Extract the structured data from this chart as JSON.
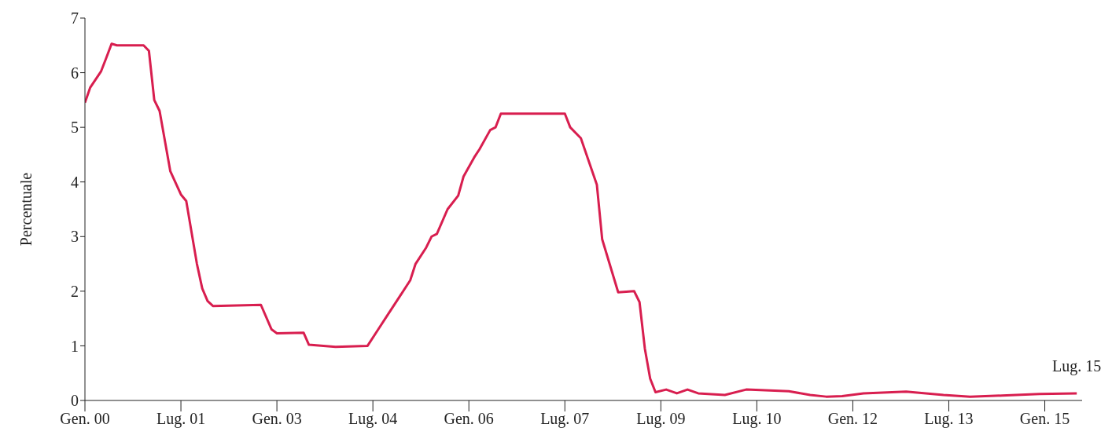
{
  "chart_data": {
    "type": "line",
    "ylabel": "Percentuale",
    "x": [
      "2000-01",
      "2000-02",
      "2000-04",
      "2000-05",
      "2000-06",
      "2000-07",
      "2000-12",
      "2001-01",
      "2001-02",
      "2001-03",
      "2001-05",
      "2001-07",
      "2001-08",
      "2001-10",
      "2001-11",
      "2001-12",
      "2002-01",
      "2002-10",
      "2002-12",
      "2003-01",
      "2003-06",
      "2003-07",
      "2003-12",
      "2004-06",
      "2004-08",
      "2004-10",
      "2004-12",
      "2005-02",
      "2005-03",
      "2005-05",
      "2005-06",
      "2005-07",
      "2005-09",
      "2005-11",
      "2005-12",
      "2006-02",
      "2006-03",
      "2006-05",
      "2006-06",
      "2006-07",
      "2007-07",
      "2007-08",
      "2007-10",
      "2008-01",
      "2008-02",
      "2008-05",
      "2008-08",
      "2008-09",
      "2008-10",
      "2008-11",
      "2008-12",
      "2009-02",
      "2009-04",
      "2009-06",
      "2009-08",
      "2010-01",
      "2010-05",
      "2011-01",
      "2011-05",
      "2011-08",
      "2011-11",
      "2012-03",
      "2012-11",
      "2013-06",
      "2013-11",
      "2014-05",
      "2014-12",
      "2015-07"
    ],
    "series": [
      {
        "color": "#d81e4f",
        "values": [
          5.45,
          5.73,
          6.02,
          6.27,
          6.53,
          6.5,
          6.5,
          6.4,
          5.5,
          5.3,
          4.2,
          3.77,
          3.65,
          2.5,
          2.05,
          1.82,
          1.73,
          1.75,
          1.3,
          1.23,
          1.24,
          1.02,
          0.98,
          1.0,
          1.3,
          1.6,
          1.9,
          2.2,
          2.5,
          2.8,
          3.0,
          3.05,
          3.5,
          3.75,
          4.1,
          4.45,
          4.6,
          4.95,
          5.0,
          5.25,
          5.25,
          5.0,
          4.8,
          3.95,
          2.95,
          1.98,
          2.0,
          1.8,
          0.95,
          0.4,
          0.15,
          0.2,
          0.13,
          0.2,
          0.13,
          0.1,
          0.2,
          0.17,
          0.1,
          0.07,
          0.08,
          0.13,
          0.16,
          0.1,
          0.07,
          0.09,
          0.12,
          0.13
        ]
      }
    ],
    "xlim": [
      "2000-01",
      "2015-08"
    ],
    "xticks": [
      {
        "value": "2000-01",
        "label": "Gen. 00"
      },
      {
        "value": "2001-07",
        "label": "Lug. 01"
      },
      {
        "value": "2003-01",
        "label": "Gen. 03"
      },
      {
        "value": "2004-07",
        "label": "Lug. 04"
      },
      {
        "value": "2006-01",
        "label": "Gen. 06"
      },
      {
        "value": "2007-07",
        "label": "Lug. 07"
      },
      {
        "value": "2009-01",
        "label": "Lug. 09"
      },
      {
        "value": "2010-07",
        "label": "Lug. 10"
      },
      {
        "value": "2012-01",
        "label": "Gen. 12"
      },
      {
        "value": "2013-07",
        "label": "Lug. 13"
      },
      {
        "value": "2015-01",
        "label": "Gen. 15"
      }
    ],
    "ylim": [
      0,
      7
    ],
    "yticks": [
      0,
      1,
      2,
      3,
      4,
      5,
      6,
      7
    ],
    "annotations": [
      {
        "text": "Lug. 15",
        "x": "2015-07",
        "y": 0.13
      }
    ],
    "grid": false,
    "legend": false,
    "marker": "none",
    "line_style": "solid"
  }
}
